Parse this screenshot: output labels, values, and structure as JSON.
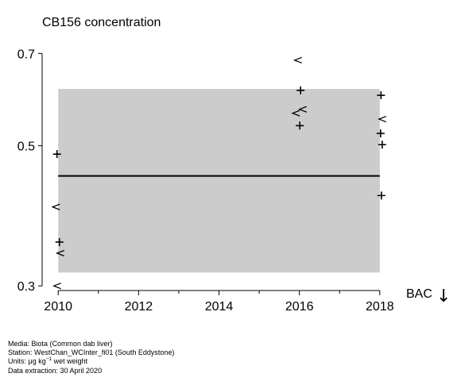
{
  "chart_data": {
    "type": "scatter",
    "title": "CB156 concentration",
    "xlim": [
      2009.6,
      2018.3
    ],
    "ylim": [
      0.295,
      0.715
    ],
    "y_scale": "log",
    "x_ticks": [
      2010,
      2012,
      2014,
      2016,
      2018
    ],
    "x_minor_ticks": [
      2011,
      2013,
      2015,
      2017
    ],
    "x_tick_labels": [
      "2010",
      "2012",
      "2014",
      "2016",
      "2018"
    ],
    "y_ticks": [
      0.3,
      0.5,
      0.7
    ],
    "y_tick_labels": [
      "0.3",
      "0.5",
      "0.7"
    ],
    "shaded_band": {
      "x": [
        2010.0,
        2018.0
      ],
      "y": [
        0.315,
        0.615
      ]
    },
    "trend_line": {
      "x": [
        2010.0,
        2018.0
      ],
      "y": [
        0.448,
        0.448
      ]
    },
    "series": [
      {
        "marker": "+",
        "points": [
          {
            "x": 2009.97,
            "y": 0.485
          },
          {
            "x": 2010.03,
            "y": 0.352
          },
          {
            "x": 2016.03,
            "y": 0.612
          },
          {
            "x": 2016.01,
            "y": 0.538
          },
          {
            "x": 2018.03,
            "y": 0.601
          },
          {
            "x": 2018.02,
            "y": 0.523
          },
          {
            "x": 2018.06,
            "y": 0.502
          },
          {
            "x": 2018.04,
            "y": 0.417
          }
        ]
      },
      {
        "marker": "<",
        "points": [
          {
            "x": 2009.95,
            "y": 0.4
          },
          {
            "x": 2010.06,
            "y": 0.338
          },
          {
            "x": 2009.98,
            "y": 0.3
          },
          {
            "x": 2015.97,
            "y": 0.683
          },
          {
            "x": 2016.09,
            "y": 0.571
          },
          {
            "x": 2015.92,
            "y": 0.563
          },
          {
            "x": 2018.07,
            "y": 0.551
          }
        ]
      }
    ],
    "assessment_label": "BAC",
    "assessment_arrow": "↓"
  },
  "footer": {
    "media": "Media: Biota (Common dab liver)",
    "station": "Station: WestChan_WCInter_fi01 (South Eddystone)",
    "units_prefix": "Units:  μg kg",
    "units_sup": "−1",
    "units_suffix": " wet weight",
    "extraction": "Data extraction: 30 April 2020"
  }
}
